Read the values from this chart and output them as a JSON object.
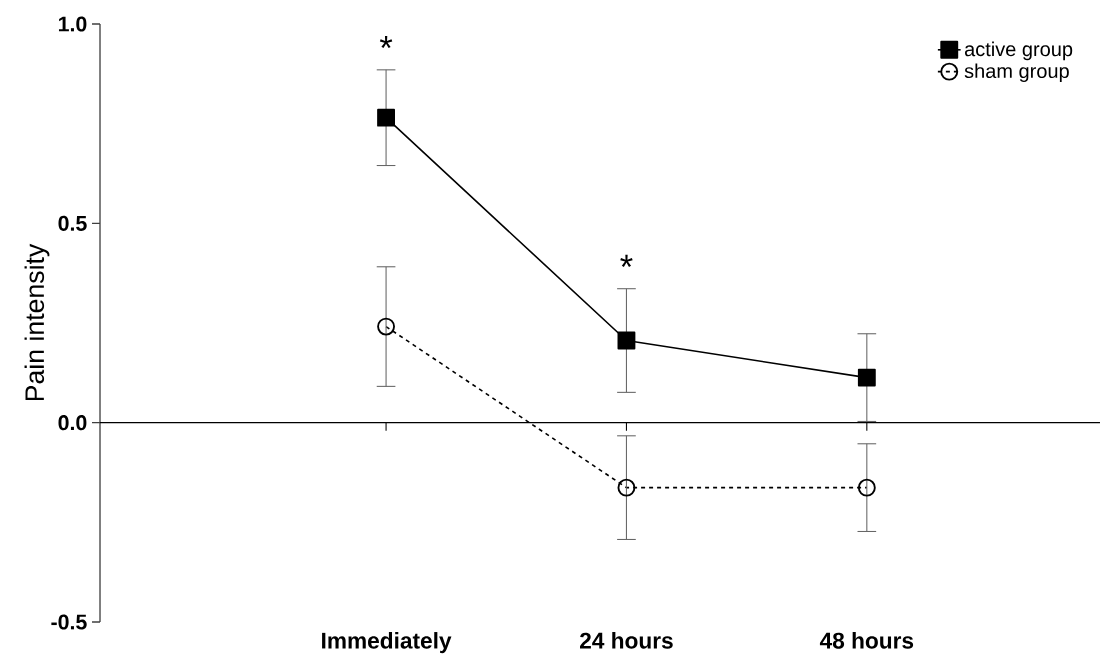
{
  "chart_data": {
    "type": "line",
    "ylabel": "Pain intensity",
    "categories": [
      "Immediately",
      "24 hours",
      "48 hours"
    ],
    "series": [
      {
        "name": "active group",
        "color": "#000000",
        "marker": "square",
        "line_style": "solid",
        "values": [
          0.765,
          0.206,
          0.113
        ],
        "errors": [
          0.12,
          0.13,
          0.11
        ]
      },
      {
        "name": "sham group",
        "color": "#000000",
        "marker": "circle",
        "line_style": "dashed",
        "values": [
          0.241,
          -0.163,
          -0.163
        ],
        "errors": [
          0.15,
          0.13,
          0.11
        ]
      }
    ],
    "ylim": [
      -0.5,
      1.0
    ],
    "yticks": [
      {
        "value": -0.5,
        "label": "-0.5"
      },
      {
        "value": 0,
        "label": "0.0"
      },
      {
        "value": 0.5,
        "label": "0.5"
      },
      {
        "value": 1.0,
        "label": "1.0"
      }
    ],
    "ref_lines": [
      {
        "axis": "y",
        "value": 0,
        "color": "#000000"
      }
    ],
    "annotations": [
      "*",
      "*"
    ],
    "legend": "top right",
    "grid": false
  }
}
